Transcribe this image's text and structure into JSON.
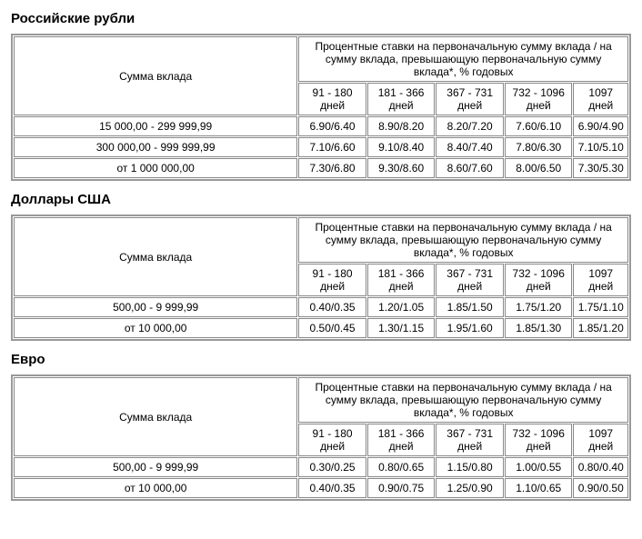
{
  "sections": [
    {
      "title": "Российские рубли",
      "amount_header": "Сумма вклада",
      "rates_header": "Процентные ставки на первоначальную сумму вклада / на сумму вклада, превышающую первоначальную сумму вклада*, % годовых",
      "periods": [
        "91 - 180 дней",
        "181 - 366 дней",
        "367 - 731 дней",
        "732 - 1096 дней",
        "1097 дней"
      ],
      "rows": [
        {
          "amount": "15 000,00 - 299 999,99",
          "rates": [
            "6.90/6.40",
            "8.90/8.20",
            "8.20/7.20",
            "7.60/6.10",
            "6.90/4.90"
          ]
        },
        {
          "amount": "300 000,00 - 999 999,99",
          "rates": [
            "7.10/6.60",
            "9.10/8.40",
            "8.40/7.40",
            "7.80/6.30",
            "7.10/5.10"
          ]
        },
        {
          "amount": "от 1 000 000,00",
          "rates": [
            "7.30/6.80",
            "9.30/8.60",
            "8.60/7.60",
            "8.00/6.50",
            "7.30/5.30"
          ]
        }
      ]
    },
    {
      "title": "Доллары США",
      "amount_header": "Сумма вклада",
      "rates_header": "Процентные ставки на первоначальную сумму вклада / на сумму вклада, превышающую первоначальную сумму вклада*, % годовых",
      "periods": [
        "91 - 180 дней",
        "181 - 366 дней",
        "367 - 731 дней",
        "732 - 1096 дней",
        "1097 дней"
      ],
      "rows": [
        {
          "amount": "500,00 - 9 999,99",
          "rates": [
            "0.40/0.35",
            "1.20/1.05",
            "1.85/1.50",
            "1.75/1.20",
            "1.75/1.10"
          ]
        },
        {
          "amount": "от 10 000,00",
          "rates": [
            "0.50/0.45",
            "1.30/1.15",
            "1.95/1.60",
            "1.85/1.30",
            "1.85/1.20"
          ]
        }
      ]
    },
    {
      "title": "Евро",
      "amount_header": "Сумма вклада",
      "rates_header": "Процентные ставки на первоначальную сумму вклада / на сумму вклада, превышающую первоначальную сумму вклада*, % годовых",
      "periods": [
        "91 - 180 дней",
        "181 - 366 дней",
        "367 - 731 дней",
        "732 - 1096 дней",
        "1097 дней"
      ],
      "rows": [
        {
          "amount": "500,00 - 9 999,99",
          "rates": [
            "0.30/0.25",
            "0.80/0.65",
            "1.15/0.80",
            "1.00/0.55",
            "0.80/0.40"
          ]
        },
        {
          "amount": "от 10 000,00",
          "rates": [
            "0.40/0.35",
            "0.90/0.75",
            "1.25/0.90",
            "1.10/0.65",
            "0.90/0.50"
          ]
        }
      ]
    }
  ]
}
